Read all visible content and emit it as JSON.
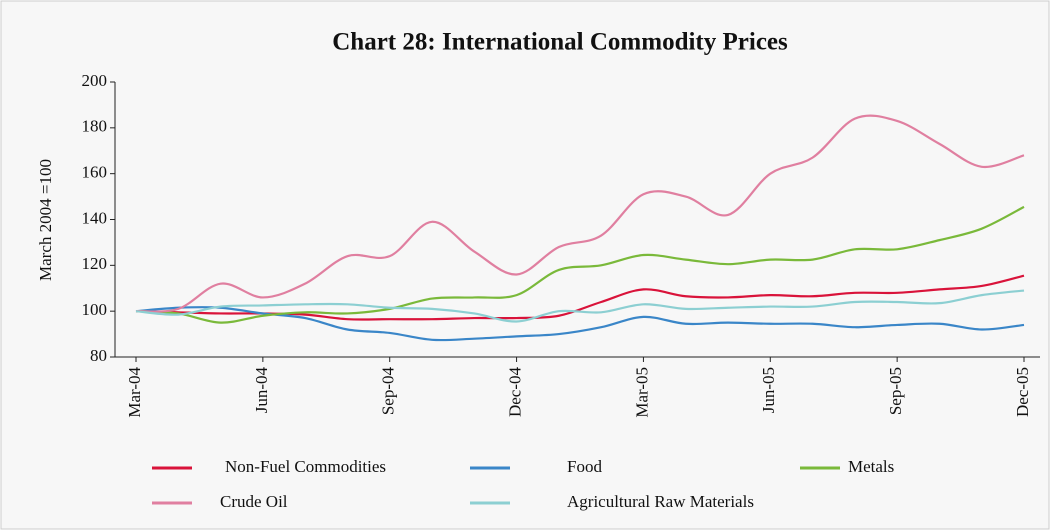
{
  "chart_data": {
    "type": "line",
    "title": "Chart 28: International Commodity Prices",
    "y_label": "March 2004 =100",
    "categories": [
      "Mar-04",
      null,
      null,
      "Jun-04",
      null,
      null,
      "Sep-04",
      null,
      null,
      "Dec-04",
      null,
      null,
      "Mar-05",
      null,
      null,
      "Jun-05",
      null,
      null,
      "Sep-05",
      null,
      null,
      "Dec-05"
    ],
    "ylim": [
      80,
      200
    ],
    "yticks": [
      80,
      100,
      120,
      140,
      160,
      180,
      200
    ],
    "legend": "bottom",
    "series": [
      {
        "name": "Non-Fuel Commodities",
        "color": "#d9133a",
        "values": [
          100,
          99.5,
          99,
          99,
          98.5,
          96.5,
          96.5,
          96.5,
          97,
          97,
          98,
          104,
          109.5,
          106.5,
          106,
          107,
          106.5,
          108,
          108,
          109.5,
          111,
          115.5
        ]
      },
      {
        "name": "Food",
        "color": "#3a86c8",
        "values": [
          100,
          101.5,
          101.5,
          99,
          97,
          92,
          90.5,
          87.5,
          88,
          89,
          90,
          93,
          97.5,
          94.5,
          95,
          94.5,
          94.5,
          93,
          94,
          94.5,
          92,
          94
        ]
      },
      {
        "name": "Metals",
        "color": "#7ab93a",
        "values": [
          100,
          99,
          95,
          98,
          99.5,
          99,
          101,
          105.5,
          106,
          107,
          118,
          120,
          124.5,
          122.5,
          120.5,
          122.5,
          122.5,
          127,
          127,
          131,
          136,
          145.5
        ]
      },
      {
        "name": "Crude Oil",
        "color": "#e07fa0",
        "values": [
          100,
          101,
          112,
          106,
          112,
          124,
          124,
          139,
          126,
          116,
          128,
          133,
          151,
          150,
          142,
          160,
          167,
          184,
          183,
          173,
          163,
          168
        ]
      },
      {
        "name": "Agricultural Raw Materials",
        "color": "#8ccfd2",
        "values": [
          100,
          98.5,
          102,
          102.5,
          103,
          103,
          101.5,
          101,
          99,
          95.5,
          100,
          99.5,
          103,
          101,
          101.5,
          102,
          102,
          104,
          104,
          103.5,
          107,
          109
        ]
      }
    ]
  }
}
